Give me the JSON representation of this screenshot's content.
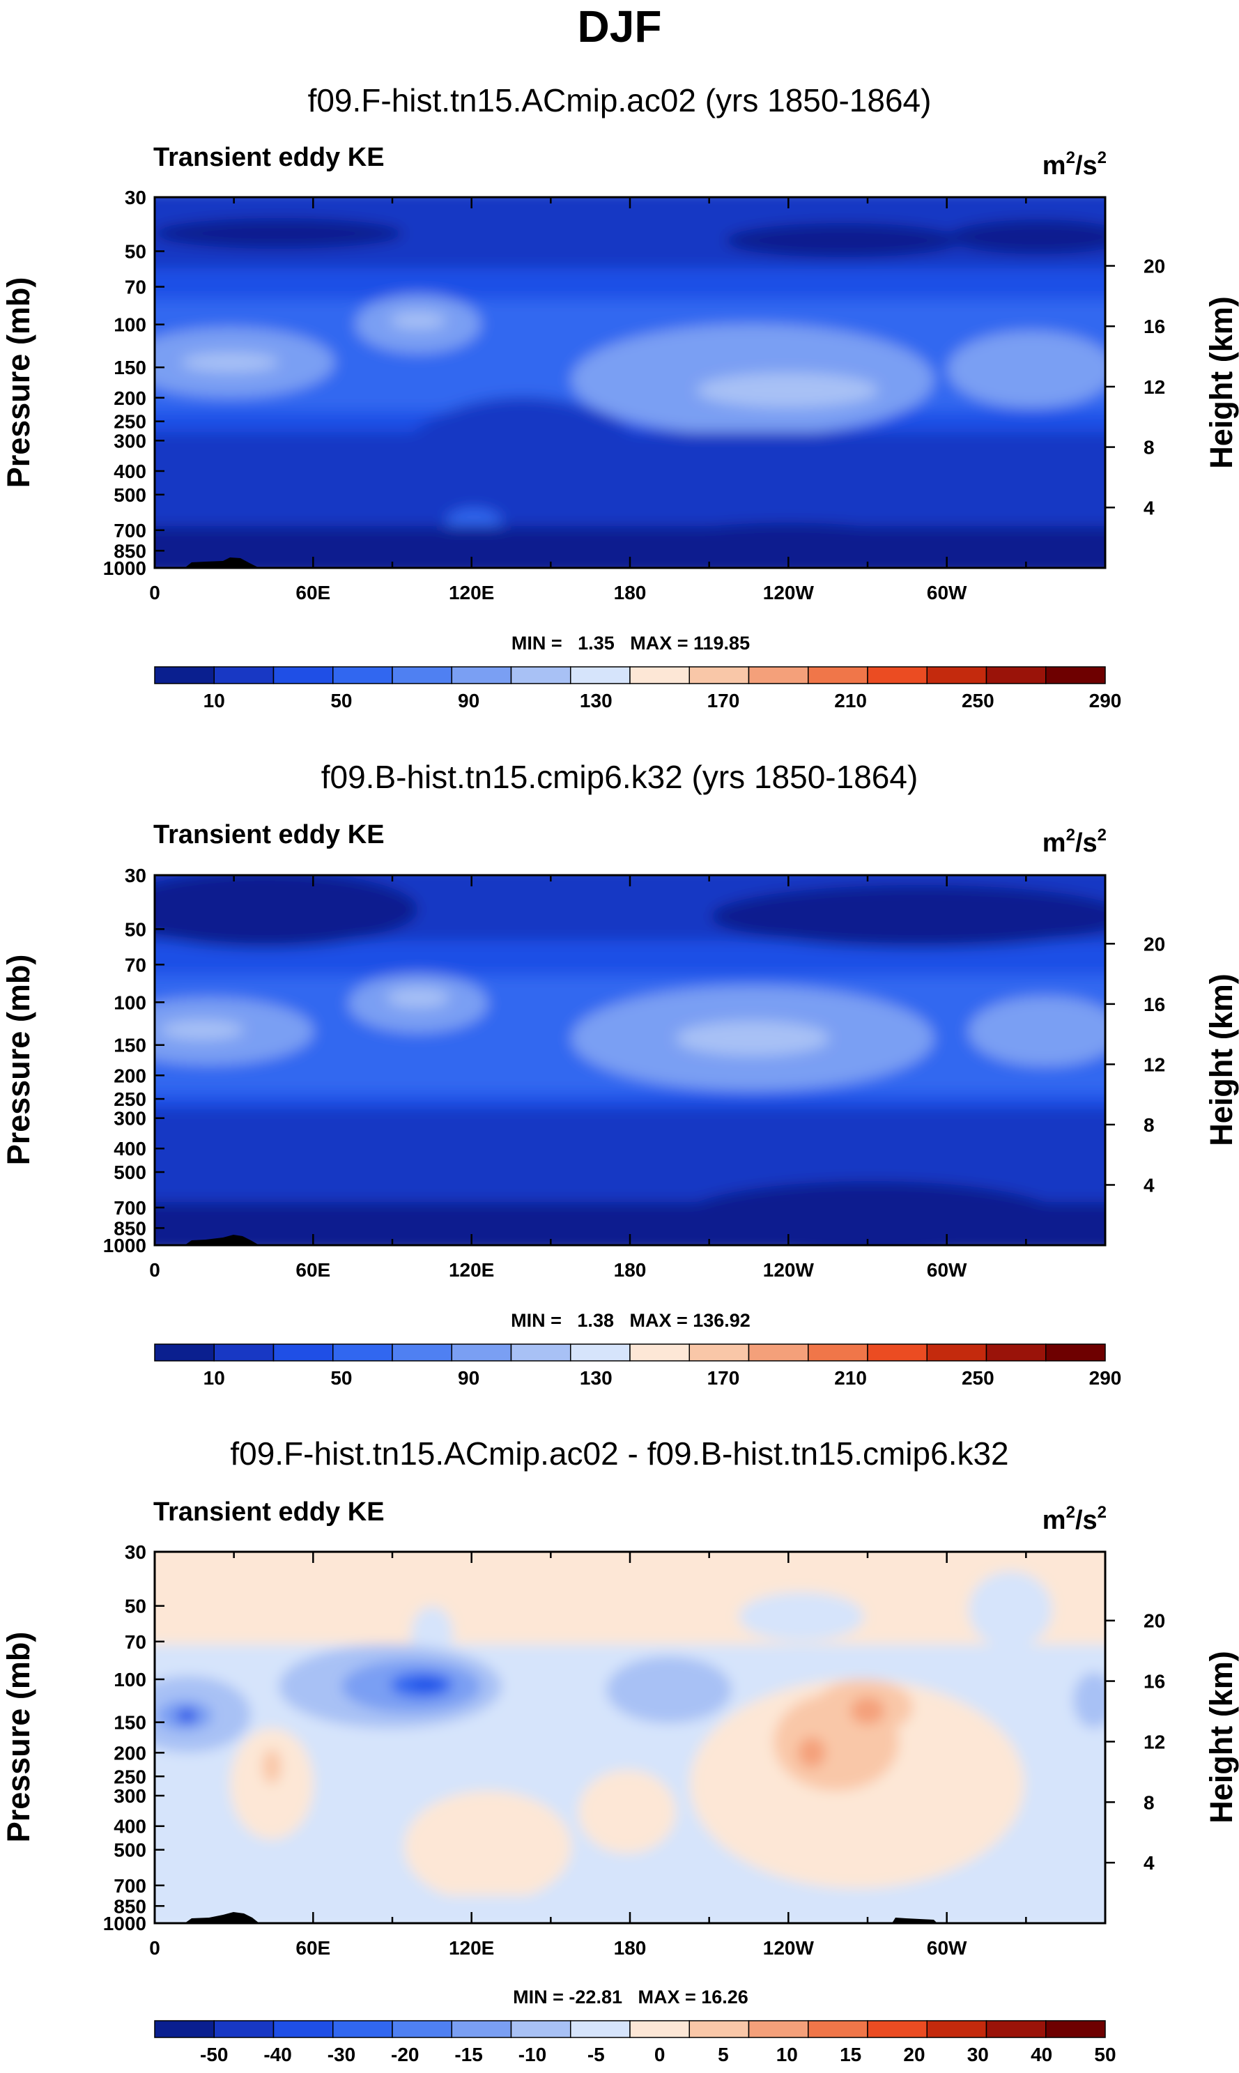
{
  "title": "DJF",
  "colors": {
    "abs_palette": [
      "#0a1f8f",
      "#1838c4",
      "#1f4fe6",
      "#3167f0",
      "#4f80f2",
      "#7a9ff3",
      "#a8c1f5",
      "#d6e4fb",
      "#fde7d6",
      "#f9c7a8",
      "#f4a07a",
      "#f07649",
      "#eb4c22",
      "#c42a0d",
      "#9a1309",
      "#6e0000"
    ],
    "diff_palette": [
      "#0a1f8f",
      "#1838c4",
      "#1f4fe6",
      "#3167f0",
      "#4f80f2",
      "#7a9ff3",
      "#a8c1f5",
      "#d6e4fb",
      "#fde7d6",
      "#f9c7a8",
      "#f4a07a",
      "#f07649",
      "#eb4c22",
      "#c42a0d",
      "#9a1309",
      "#6e0000"
    ]
  },
  "chart_data": [
    {
      "type": "heatmap",
      "title": "f09.F-hist.tn15.ACmip.ac02 (yrs 1850-1864)",
      "label_left": "Transient eddy KE",
      "units": [
        "m",
        "2",
        "/s",
        "2"
      ],
      "ylabel": "Pressure (mb)",
      "ylabel_right": "Height (km)",
      "x_ticks": [
        "0",
        "60E",
        "120E",
        "180",
        "120W",
        "60W"
      ],
      "y_ticks": [
        "30",
        "50",
        "70",
        "100",
        "150",
        "200",
        "250",
        "300",
        "400",
        "500",
        "700",
        "850",
        "1000"
      ],
      "y_ticks_right": [
        "20",
        "16",
        "12",
        "8",
        "4"
      ],
      "stats": "MIN =   1.35   MAX = 119.85",
      "colorbar_labels": [
        "10",
        "50",
        "90",
        "130",
        "170",
        "210",
        "250",
        "290"
      ],
      "levels": [
        10,
        30,
        50,
        70,
        90,
        110,
        130,
        150,
        170,
        190,
        210,
        230,
        250,
        270,
        290
      ],
      "zlim": [
        1.35,
        119.85
      ]
    },
    {
      "type": "heatmap",
      "title": "f09.B-hist.tn15.cmip6.k32 (yrs 1850-1864)",
      "label_left": "Transient eddy KE",
      "units": [
        "m",
        "2",
        "/s",
        "2"
      ],
      "ylabel": "Pressure (mb)",
      "ylabel_right": "Height (km)",
      "x_ticks": [
        "0",
        "60E",
        "120E",
        "180",
        "120W",
        "60W"
      ],
      "y_ticks": [
        "30",
        "50",
        "70",
        "100",
        "150",
        "200",
        "250",
        "300",
        "400",
        "500",
        "700",
        "850",
        "1000"
      ],
      "y_ticks_right": [
        "20",
        "16",
        "12",
        "8",
        "4"
      ],
      "stats": "MIN =   1.38   MAX = 136.92",
      "colorbar_labels": [
        "10",
        "50",
        "90",
        "130",
        "170",
        "210",
        "250",
        "290"
      ],
      "levels": [
        10,
        30,
        50,
        70,
        90,
        110,
        130,
        150,
        170,
        190,
        210,
        230,
        250,
        270,
        290
      ],
      "zlim": [
        1.38,
        136.92
      ]
    },
    {
      "type": "heatmap",
      "title": "f09.F-hist.tn15.ACmip.ac02 - f09.B-hist.tn15.cmip6.k32",
      "label_left": "Transient eddy KE",
      "units": [
        "m",
        "2",
        "/s",
        "2"
      ],
      "ylabel": "Pressure (mb)",
      "ylabel_right": "Height (km)",
      "x_ticks": [
        "0",
        "60E",
        "120E",
        "180",
        "120W",
        "60W"
      ],
      "y_ticks": [
        "30",
        "50",
        "70",
        "100",
        "150",
        "200",
        "250",
        "300",
        "400",
        "500",
        "700",
        "850",
        "1000"
      ],
      "y_ticks_right": [
        "20",
        "16",
        "12",
        "8",
        "4"
      ],
      "stats": "MIN = -22.81   MAX = 16.26",
      "colorbar_labels": [
        "-50",
        "-40",
        "-30",
        "-20",
        "-15",
        "-10",
        "-5",
        "0",
        "5",
        "10",
        "15",
        "20",
        "30",
        "40",
        "50"
      ],
      "levels": [
        -50,
        -40,
        -30,
        -20,
        -15,
        -10,
        -5,
        0,
        5,
        10,
        15,
        20,
        30,
        40,
        50
      ],
      "zlim": [
        -22.81,
        16.26
      ]
    }
  ]
}
